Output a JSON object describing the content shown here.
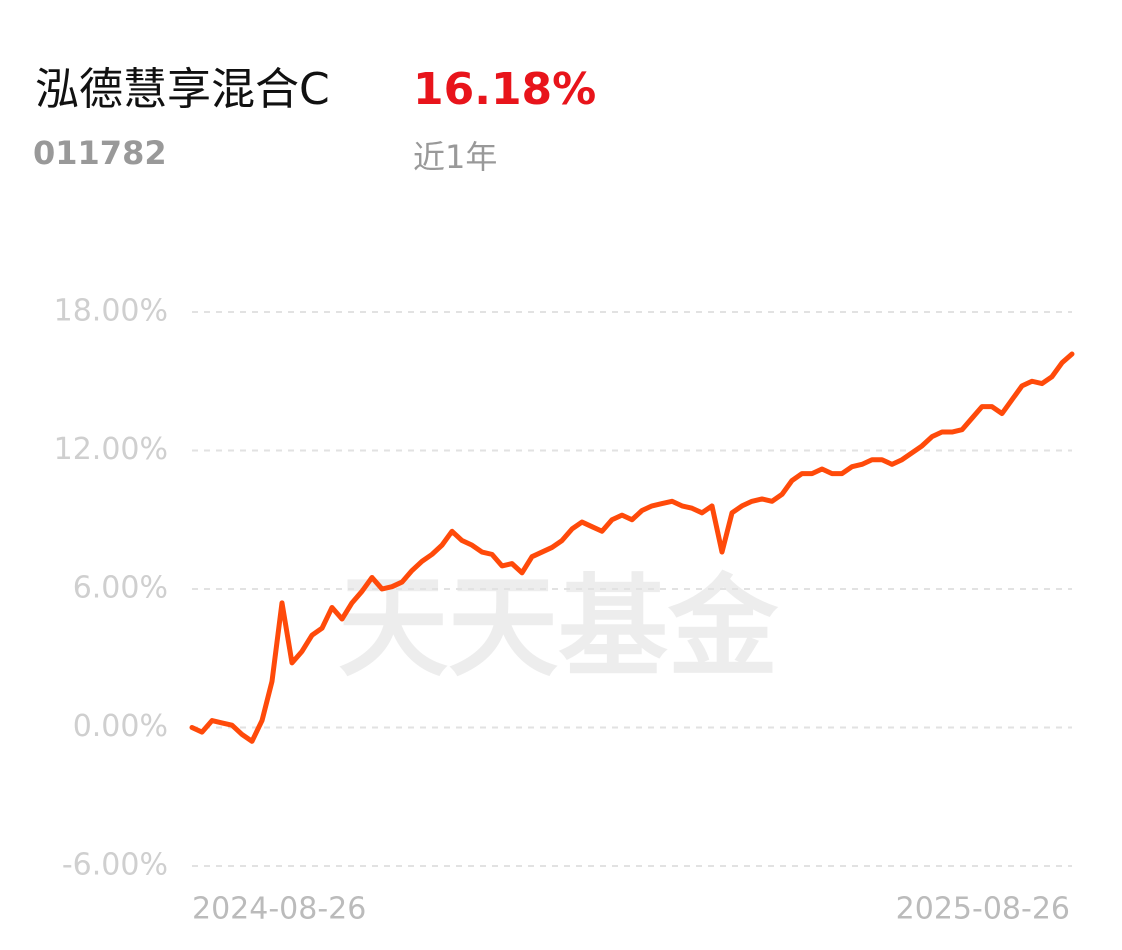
{
  "header": {
    "title": "泓德慧享混合C",
    "code": "011782",
    "return": "16.18%",
    "period": "近1年",
    "watermark": "天天基金"
  },
  "chart_data": {
    "type": "line",
    "categories": [
      "2024-08-26",
      null,
      null,
      null,
      null,
      null,
      null,
      null,
      null,
      null,
      null,
      null,
      null,
      null,
      null,
      null,
      null,
      null,
      null,
      null,
      null,
      null,
      null,
      null,
      null,
      null,
      null,
      null,
      null,
      null,
      null,
      null,
      null,
      null,
      null,
      null,
      null,
      null,
      null,
      null,
      null,
      null,
      null,
      null,
      null,
      null,
      null,
      null,
      null,
      null,
      null,
      null,
      null,
      null,
      null,
      null,
      null,
      null,
      null,
      null,
      null,
      null,
      null,
      null,
      null,
      null,
      null,
      null,
      null,
      null,
      null,
      null,
      null,
      null,
      null,
      null,
      null,
      null,
      null,
      null,
      null,
      null,
      null,
      null,
      null,
      null,
      null,
      null,
      "2025-08-26"
    ],
    "series": [
      {
        "color": "#ff4a0a",
        "values": [
          0.0,
          -0.2,
          0.3,
          0.2,
          0.1,
          -0.3,
          -0.6,
          0.3,
          2.0,
          5.4,
          2.8,
          3.3,
          4.0,
          4.3,
          5.2,
          4.7,
          5.4,
          5.9,
          6.5,
          6.0,
          6.1,
          6.3,
          6.8,
          7.2,
          7.5,
          7.9,
          8.5,
          8.1,
          7.9,
          7.6,
          7.5,
          7.0,
          7.1,
          6.7,
          7.4,
          7.6,
          7.8,
          8.1,
          8.6,
          8.9,
          8.7,
          8.5,
          9.0,
          9.2,
          9.0,
          9.4,
          9.6,
          9.7,
          9.8,
          9.6,
          9.5,
          9.3,
          9.6,
          7.6,
          9.3,
          9.6,
          9.8,
          9.9,
          9.8,
          10.1,
          10.7,
          11.0,
          11.0,
          11.2,
          11.0,
          11.0,
          11.3,
          11.4,
          11.6,
          11.6,
          11.4,
          11.6,
          11.9,
          12.2,
          12.6,
          12.8,
          12.8,
          12.9,
          13.4,
          13.9,
          13.9,
          13.6,
          14.2,
          14.8,
          15.0,
          14.9,
          15.2,
          15.8,
          16.18
        ]
      }
    ],
    "ylim": [
      -6,
      18
    ],
    "yticks": [
      {
        "value": -6,
        "label": "-6.00%"
      },
      {
        "value": 0,
        "label": "0.00%"
      },
      {
        "value": 6,
        "label": "6.00%"
      },
      {
        "value": 12,
        "label": "12.00%"
      },
      {
        "value": 18,
        "label": "18.00%"
      }
    ],
    "grid": true
  }
}
